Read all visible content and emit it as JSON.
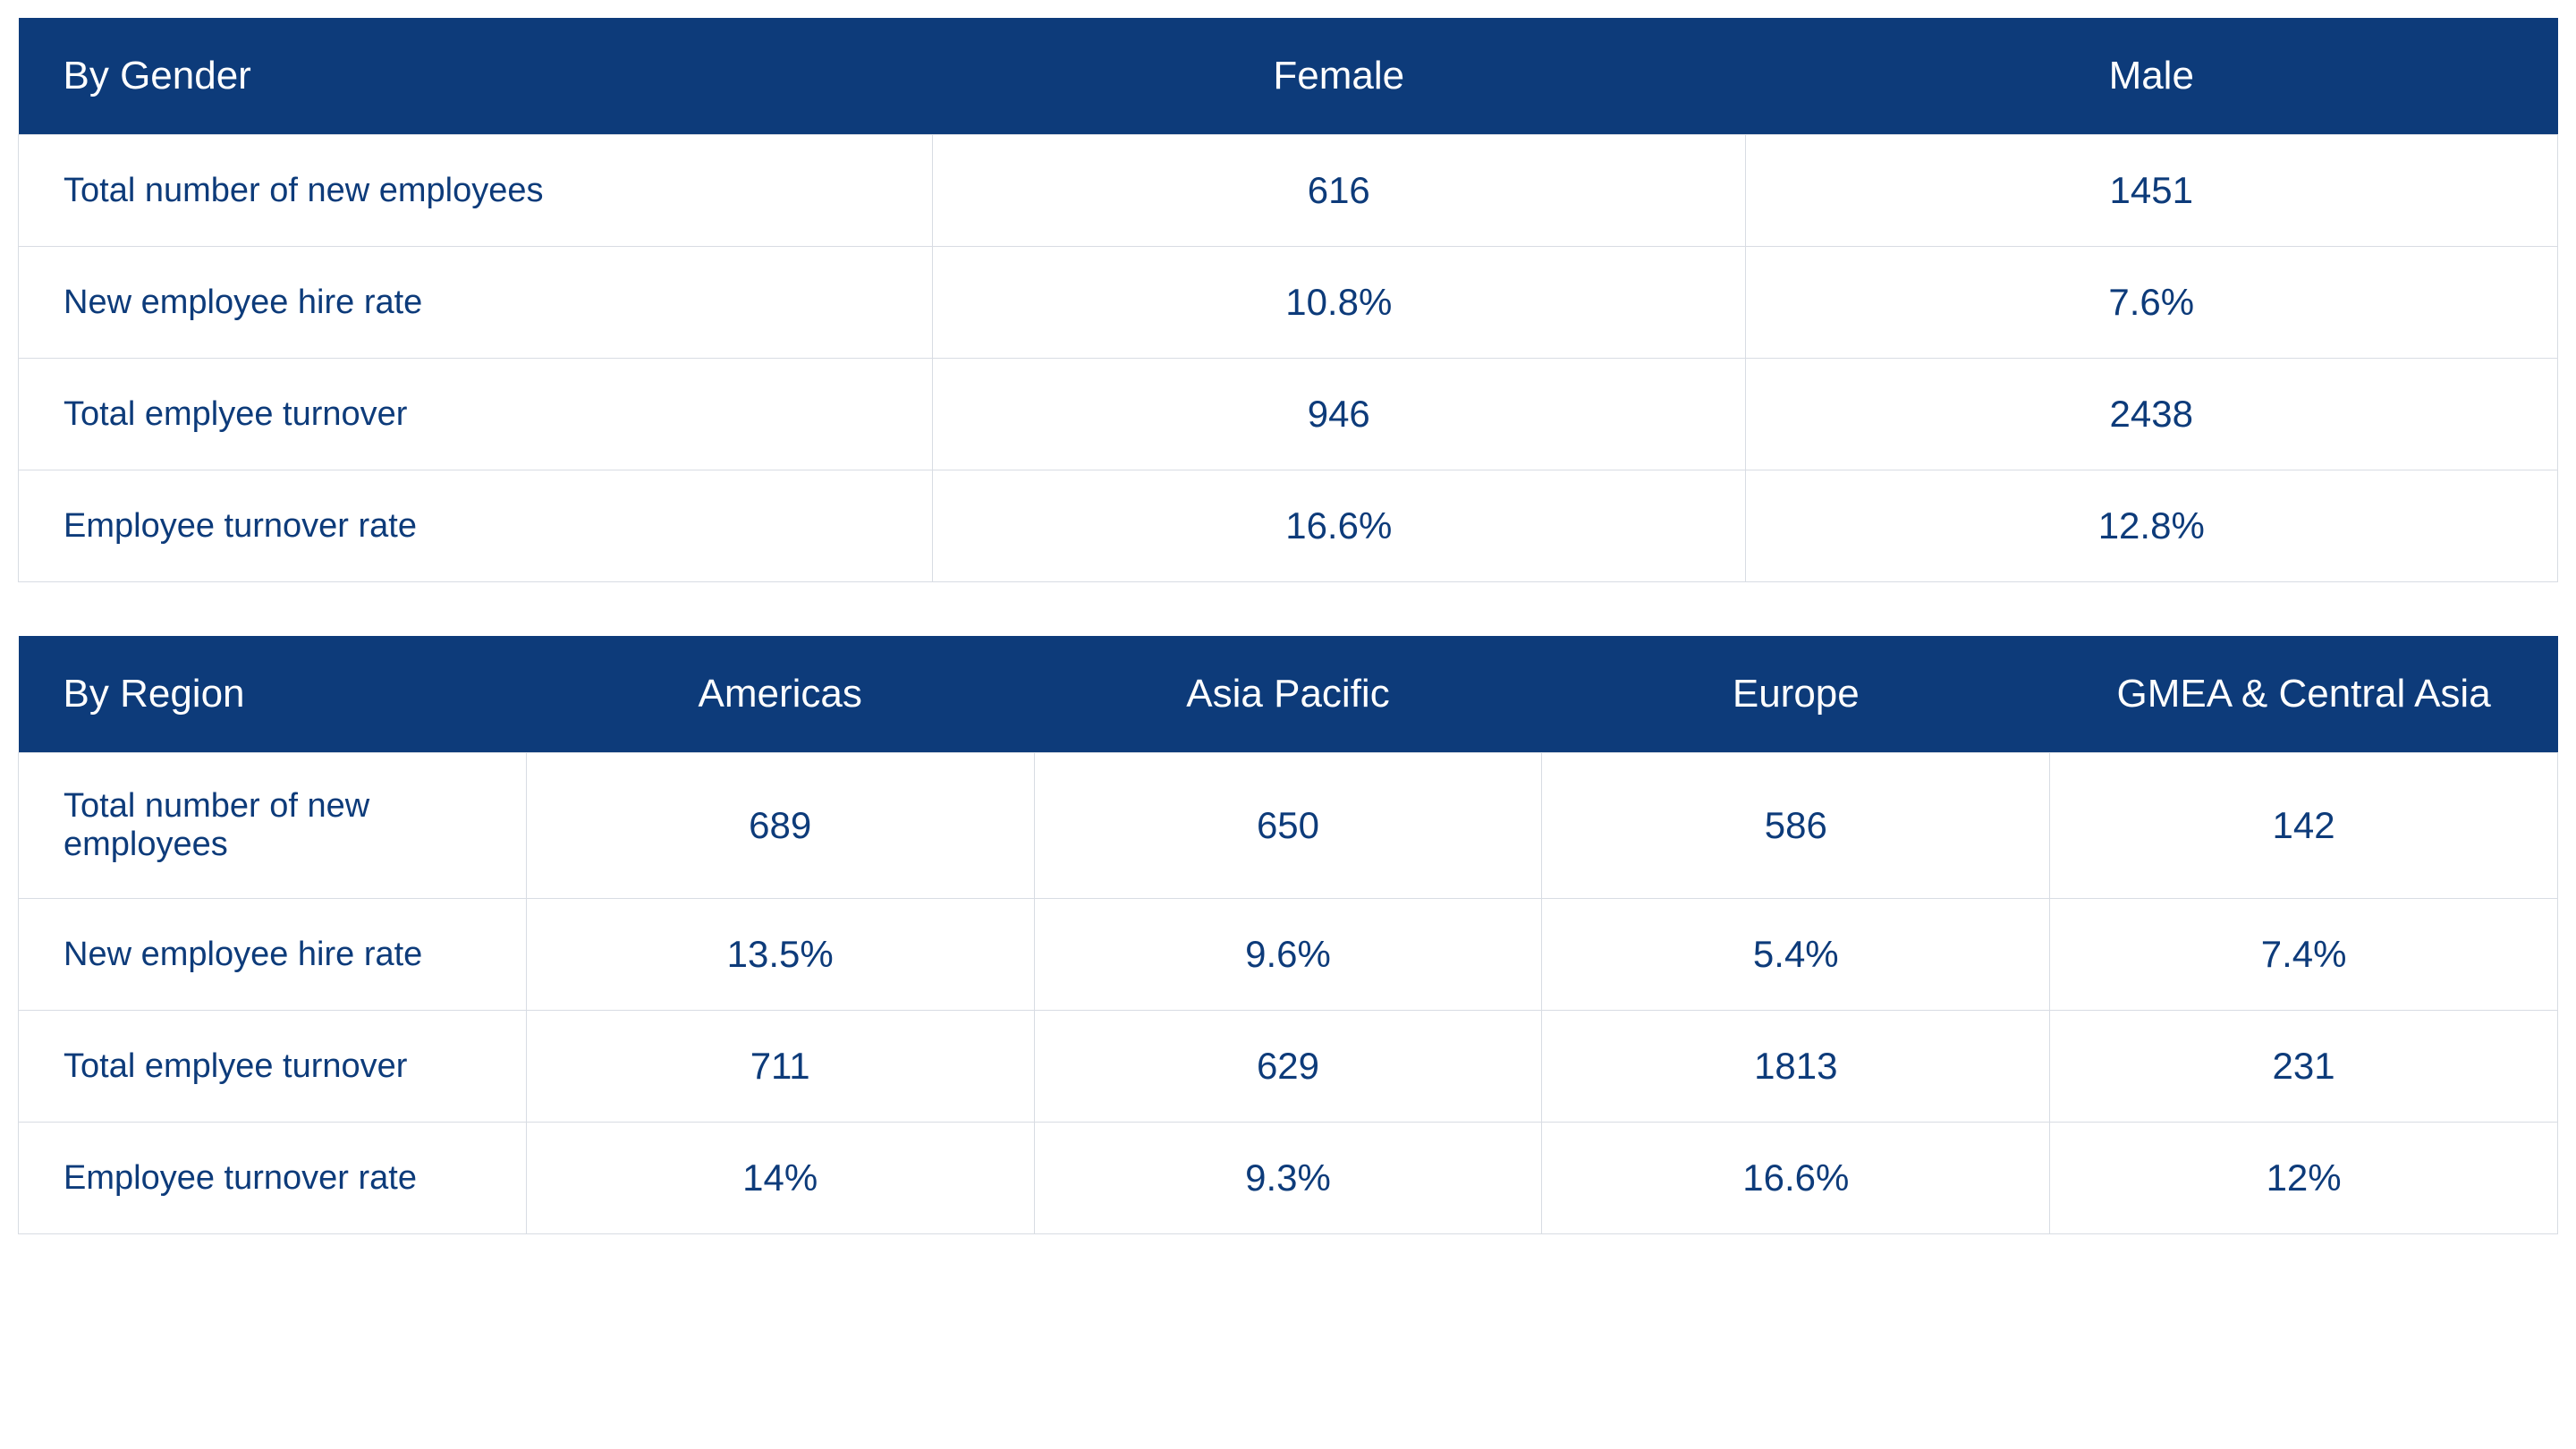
{
  "tables": {
    "gender": {
      "type": "table",
      "header_bg_color": "#0d3b7a",
      "header_text_color": "#ffffff",
      "cell_text_color": "#0d3b7a",
      "border_color": "#d8dce3",
      "background_color": "#ffffff",
      "header_fontsize": 44,
      "cell_fontsize": 42,
      "label_fontsize": 38,
      "columns": [
        "By Gender",
        "Female",
        "Male"
      ],
      "rows": [
        {
          "label": "Total number of new employees",
          "values": [
            "616",
            "1451"
          ]
        },
        {
          "label": "New employee hire rate",
          "values": [
            "10.8%",
            "7.6%"
          ]
        },
        {
          "label": "Total emplyee turnover",
          "values": [
            "946",
            "2438"
          ]
        },
        {
          "label": "Employee turnover rate",
          "values": [
            "16.6%",
            "12.8%"
          ]
        }
      ]
    },
    "region": {
      "type": "table",
      "header_bg_color": "#0d3b7a",
      "header_text_color": "#ffffff",
      "cell_text_color": "#0d3b7a",
      "border_color": "#d8dce3",
      "background_color": "#ffffff",
      "header_fontsize": 44,
      "cell_fontsize": 42,
      "label_fontsize": 38,
      "columns": [
        "By Region",
        "Americas",
        "Asia Pacific",
        "Europe",
        "GMEA & Central Asia"
      ],
      "rows": [
        {
          "label": "Total number of new employees",
          "values": [
            "689",
            "650",
            "586",
            "142"
          ]
        },
        {
          "label": "New employee hire rate",
          "values": [
            "13.5%",
            "9.6%",
            "5.4%",
            "7.4%"
          ]
        },
        {
          "label": "Total emplyee turnover",
          "values": [
            "711",
            "629",
            "1813",
            "231"
          ]
        },
        {
          "label": "Employee turnover rate",
          "values": [
            "14%",
            "9.3%",
            "16.6%",
            "12%"
          ]
        }
      ]
    }
  }
}
